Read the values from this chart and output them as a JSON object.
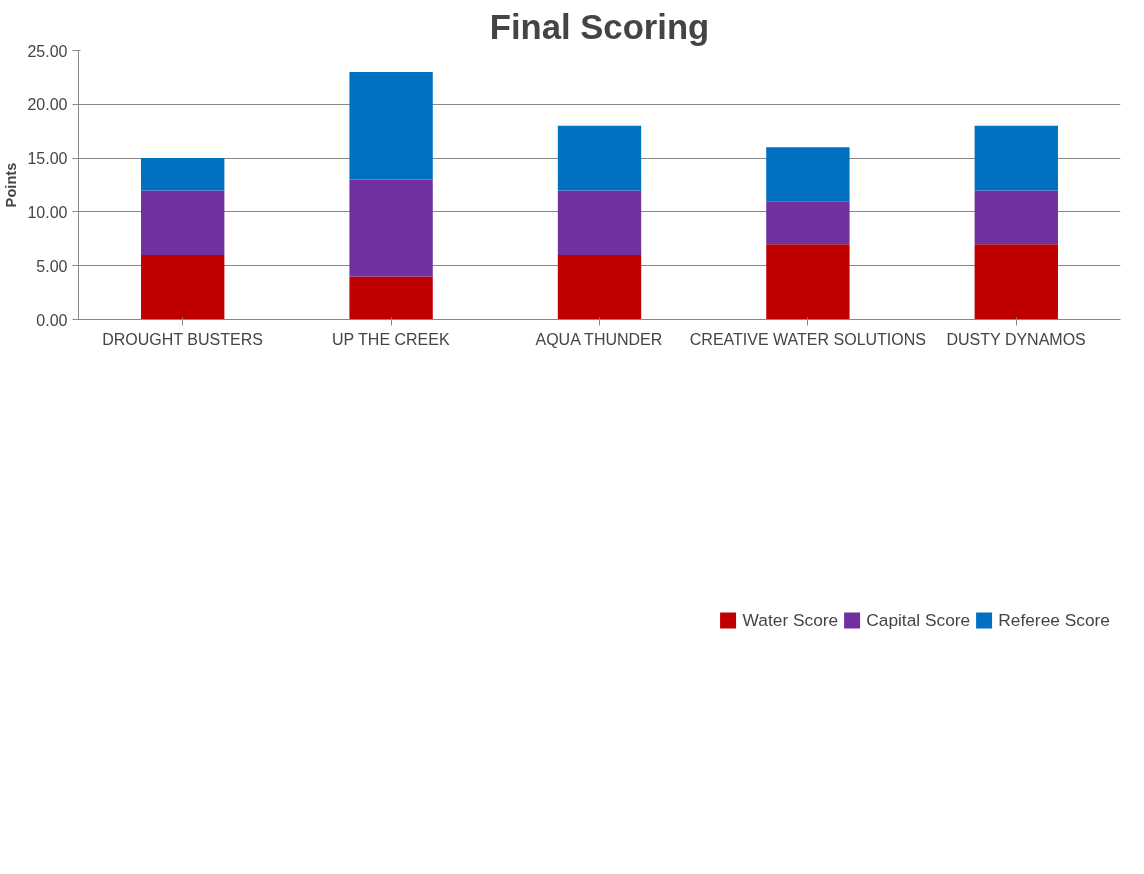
{
  "chart_data": {
    "type": "bar",
    "stacked": true,
    "title": "Final Scoring",
    "ylabel": "Points",
    "categories": [
      "DROUGHT BUSTERS",
      "UP THE CREEK",
      "AQUA THUNDER",
      "CREATIVE WATER SOLUTIONS",
      "DUSTY DYNAMOS"
    ],
    "series": [
      {
        "name": "Water Score",
        "color": "#c00000",
        "values": [
          6,
          4,
          6,
          7,
          7
        ]
      },
      {
        "name": "Capital Score",
        "color": "#7030a0",
        "values": [
          6,
          9,
          6,
          4,
          5
        ]
      },
      {
        "name": "Referee Score",
        "color": "#0070c0",
        "values": [
          3,
          10,
          6,
          5,
          6
        ]
      }
    ],
    "ylim": [
      0,
      25
    ],
    "yticks": [
      {
        "value": 0,
        "label": "0.00"
      },
      {
        "value": 5,
        "label": "5.00"
      },
      {
        "value": 10,
        "label": "10.00"
      },
      {
        "value": 15,
        "label": "15.00"
      },
      {
        "value": 20,
        "label": "20.00"
      },
      {
        "value": 25,
        "label": "25.00"
      }
    ],
    "grid": "y",
    "legend": "bottom"
  }
}
